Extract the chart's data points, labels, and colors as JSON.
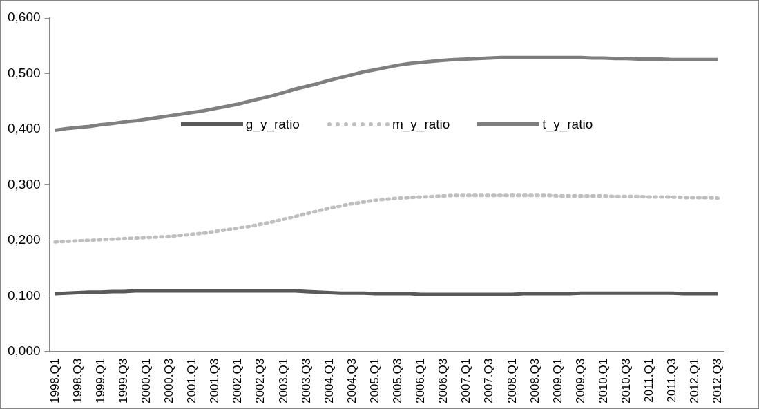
{
  "chart_data": {
    "type": "line",
    "categories": [
      "1998.Q1",
      null,
      "1998.Q3",
      null,
      "1999.Q1",
      null,
      "1999.Q3",
      null,
      "2000.Q1",
      null,
      "2000.Q3",
      null,
      "2001.Q1",
      null,
      "2001.Q3",
      null,
      "2002.Q1",
      null,
      "2002.Q3",
      null,
      "2003.Q1",
      null,
      "2003.Q3",
      null,
      "2004.Q1",
      null,
      "2004.Q3",
      null,
      "2005.Q1",
      null,
      "2005.Q3",
      null,
      "2006.Q1",
      null,
      "2006.Q3",
      null,
      "2007.Q1",
      null,
      "2007.Q3",
      null,
      "2008.Q1",
      null,
      "2008.Q3",
      null,
      "2009.Q1",
      null,
      "2009.Q3",
      null,
      "2010.Q1",
      null,
      "2010.Q3",
      null,
      "2011.Q1",
      null,
      "2011.Q3",
      null,
      "2012.Q1",
      null,
      "2012.Q3"
    ],
    "series": [
      {
        "name": "g_y_ratio",
        "color": "#595959",
        "line_style": "solid",
        "values": [
          0.104,
          0.105,
          0.106,
          0.107,
          0.107,
          0.108,
          0.108,
          0.109,
          0.109,
          0.109,
          0.109,
          0.109,
          0.109,
          0.109,
          0.109,
          0.109,
          0.109,
          0.109,
          0.109,
          0.109,
          0.109,
          0.109,
          0.108,
          0.107,
          0.106,
          0.105,
          0.105,
          0.105,
          0.104,
          0.104,
          0.104,
          0.104,
          0.103,
          0.103,
          0.103,
          0.103,
          0.103,
          0.103,
          0.103,
          0.103,
          0.103,
          0.104,
          0.104,
          0.104,
          0.104,
          0.104,
          0.105,
          0.105,
          0.105,
          0.105,
          0.105,
          0.105,
          0.105,
          0.105,
          0.105,
          0.104,
          0.104,
          0.104,
          0.104
        ]
      },
      {
        "name": "m_y_ratio",
        "color": "#bfbfbf",
        "line_style": "dotted",
        "values": [
          0.197,
          0.198,
          0.199,
          0.2,
          0.201,
          0.202,
          0.203,
          0.204,
          0.205,
          0.206,
          0.207,
          0.209,
          0.211,
          0.213,
          0.216,
          0.219,
          0.222,
          0.225,
          0.229,
          0.233,
          0.238,
          0.243,
          0.248,
          0.253,
          0.258,
          0.262,
          0.266,
          0.269,
          0.272,
          0.274,
          0.276,
          0.277,
          0.278,
          0.279,
          0.28,
          0.281,
          0.281,
          0.281,
          0.281,
          0.281,
          0.281,
          0.281,
          0.281,
          0.281,
          0.28,
          0.28,
          0.28,
          0.28,
          0.28,
          0.279,
          0.279,
          0.279,
          0.278,
          0.278,
          0.278,
          0.277,
          0.277,
          0.277,
          0.276
        ]
      },
      {
        "name": "t_y_ratio",
        "color": "#7f7f7f",
        "line_style": "solid",
        "values": [
          0.398,
          0.401,
          0.403,
          0.405,
          0.408,
          0.41,
          0.413,
          0.415,
          0.418,
          0.421,
          0.424,
          0.427,
          0.43,
          0.433,
          0.437,
          0.441,
          0.445,
          0.45,
          0.455,
          0.46,
          0.466,
          0.472,
          0.477,
          0.482,
          0.488,
          0.493,
          0.498,
          0.503,
          0.507,
          0.511,
          0.515,
          0.518,
          0.52,
          0.522,
          0.524,
          0.525,
          0.526,
          0.527,
          0.528,
          0.529,
          0.529,
          0.529,
          0.529,
          0.529,
          0.529,
          0.529,
          0.529,
          0.528,
          0.528,
          0.527,
          0.527,
          0.526,
          0.526,
          0.526,
          0.525,
          0.525,
          0.525,
          0.525,
          0.525
        ]
      }
    ],
    "ylim": [
      0,
      0.6
    ],
    "yticks": [
      {
        "value": 0,
        "label": "0,000"
      },
      {
        "value": 0.1,
        "label": "0,100"
      },
      {
        "value": 0.2,
        "label": "0,200"
      },
      {
        "value": 0.3,
        "label": "0,300"
      },
      {
        "value": 0.4,
        "label": "0,400"
      },
      {
        "value": 0.5,
        "label": "0,500"
      },
      {
        "value": 0.6,
        "label": "0,600"
      }
    ],
    "grid": false,
    "legend": "center",
    "marker": "none"
  }
}
